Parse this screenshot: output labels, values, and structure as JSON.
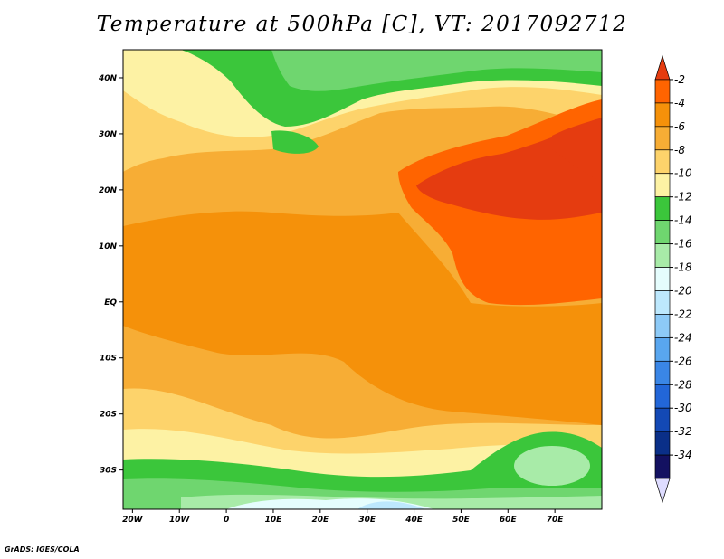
{
  "title": "Temperature at 500hPa [C], VT: 2017092712",
  "credit": "GrADS: IGES/COLA",
  "chart_data": {
    "type": "heatmap",
    "title": "Temperature at 500hPa [C], VT: 2017092712",
    "xlim": [
      -22,
      80
    ],
    "ylim": [
      -37,
      45
    ],
    "x_ticks": [
      {
        "value": -20,
        "label": "20W"
      },
      {
        "value": -10,
        "label": "10W"
      },
      {
        "value": 0,
        "label": "0"
      },
      {
        "value": 10,
        "label": "10E"
      },
      {
        "value": 20,
        "label": "20E"
      },
      {
        "value": 30,
        "label": "30E"
      },
      {
        "value": 40,
        "label": "40E"
      },
      {
        "value": 50,
        "label": "50E"
      },
      {
        "value": 60,
        "label": "60E"
      },
      {
        "value": 70,
        "label": "70E"
      }
    ],
    "y_ticks": [
      {
        "value": 40,
        "label": "40N"
      },
      {
        "value": 30,
        "label": "30N"
      },
      {
        "value": 20,
        "label": "20N"
      },
      {
        "value": 10,
        "label": "10N"
      },
      {
        "value": 0,
        "label": "EQ"
      },
      {
        "value": -10,
        "label": "10S"
      },
      {
        "value": -20,
        "label": "20S"
      },
      {
        "value": -30,
        "label": "30S"
      }
    ],
    "colorbar": {
      "levels": [
        "-2",
        "-4",
        "-6",
        "-8",
        "-10",
        "-12",
        "-14",
        "-16",
        "-18",
        "-20",
        "-22",
        "-24",
        "-26",
        "-28",
        "-30",
        "-32",
        "-34"
      ],
      "colors": [
        "#e53c10",
        "#ff6400",
        "#f5910a",
        "#f7ad35",
        "#fdd36b",
        "#fdf2a4",
        "#3bc63b",
        "#6fd66f",
        "#a8eba8",
        "#e5fdfd",
        "#bde8fd",
        "#8dcaf7",
        "#59a6ef",
        "#3a86e6",
        "#2266d8",
        "#1349b5",
        "#0a2f88",
        "#131161",
        "#dedcff"
      ]
    }
  }
}
